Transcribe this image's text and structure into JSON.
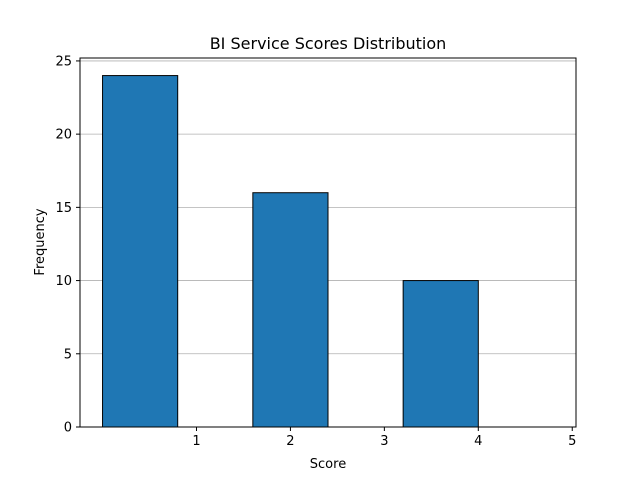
{
  "chart_data": {
    "type": "bar",
    "title": "BI Service Scores Distribution",
    "xlabel": "Score",
    "ylabel": "Frequency",
    "bins": [
      {
        "start": 0.0,
        "end": 0.8,
        "value": 24
      },
      {
        "start": 0.8,
        "end": 1.6,
        "value": 0
      },
      {
        "start": 1.6,
        "end": 2.4,
        "value": 16
      },
      {
        "start": 2.4,
        "end": 3.2,
        "value": 0
      },
      {
        "start": 3.2,
        "end": 4.0,
        "value": 10
      },
      {
        "start": 4.0,
        "end": 4.8,
        "value": 0
      }
    ],
    "xlim": [
      -0.24,
      5.04
    ],
    "ylim": [
      0,
      25.2
    ],
    "xticks": [
      1,
      2,
      3,
      4,
      5
    ],
    "yticks": [
      0,
      5,
      10,
      15,
      20,
      25
    ],
    "grid": "y",
    "bar_color": "#1f77b4",
    "edge_color": "#000000",
    "grid_color": "#b0b0b0"
  }
}
